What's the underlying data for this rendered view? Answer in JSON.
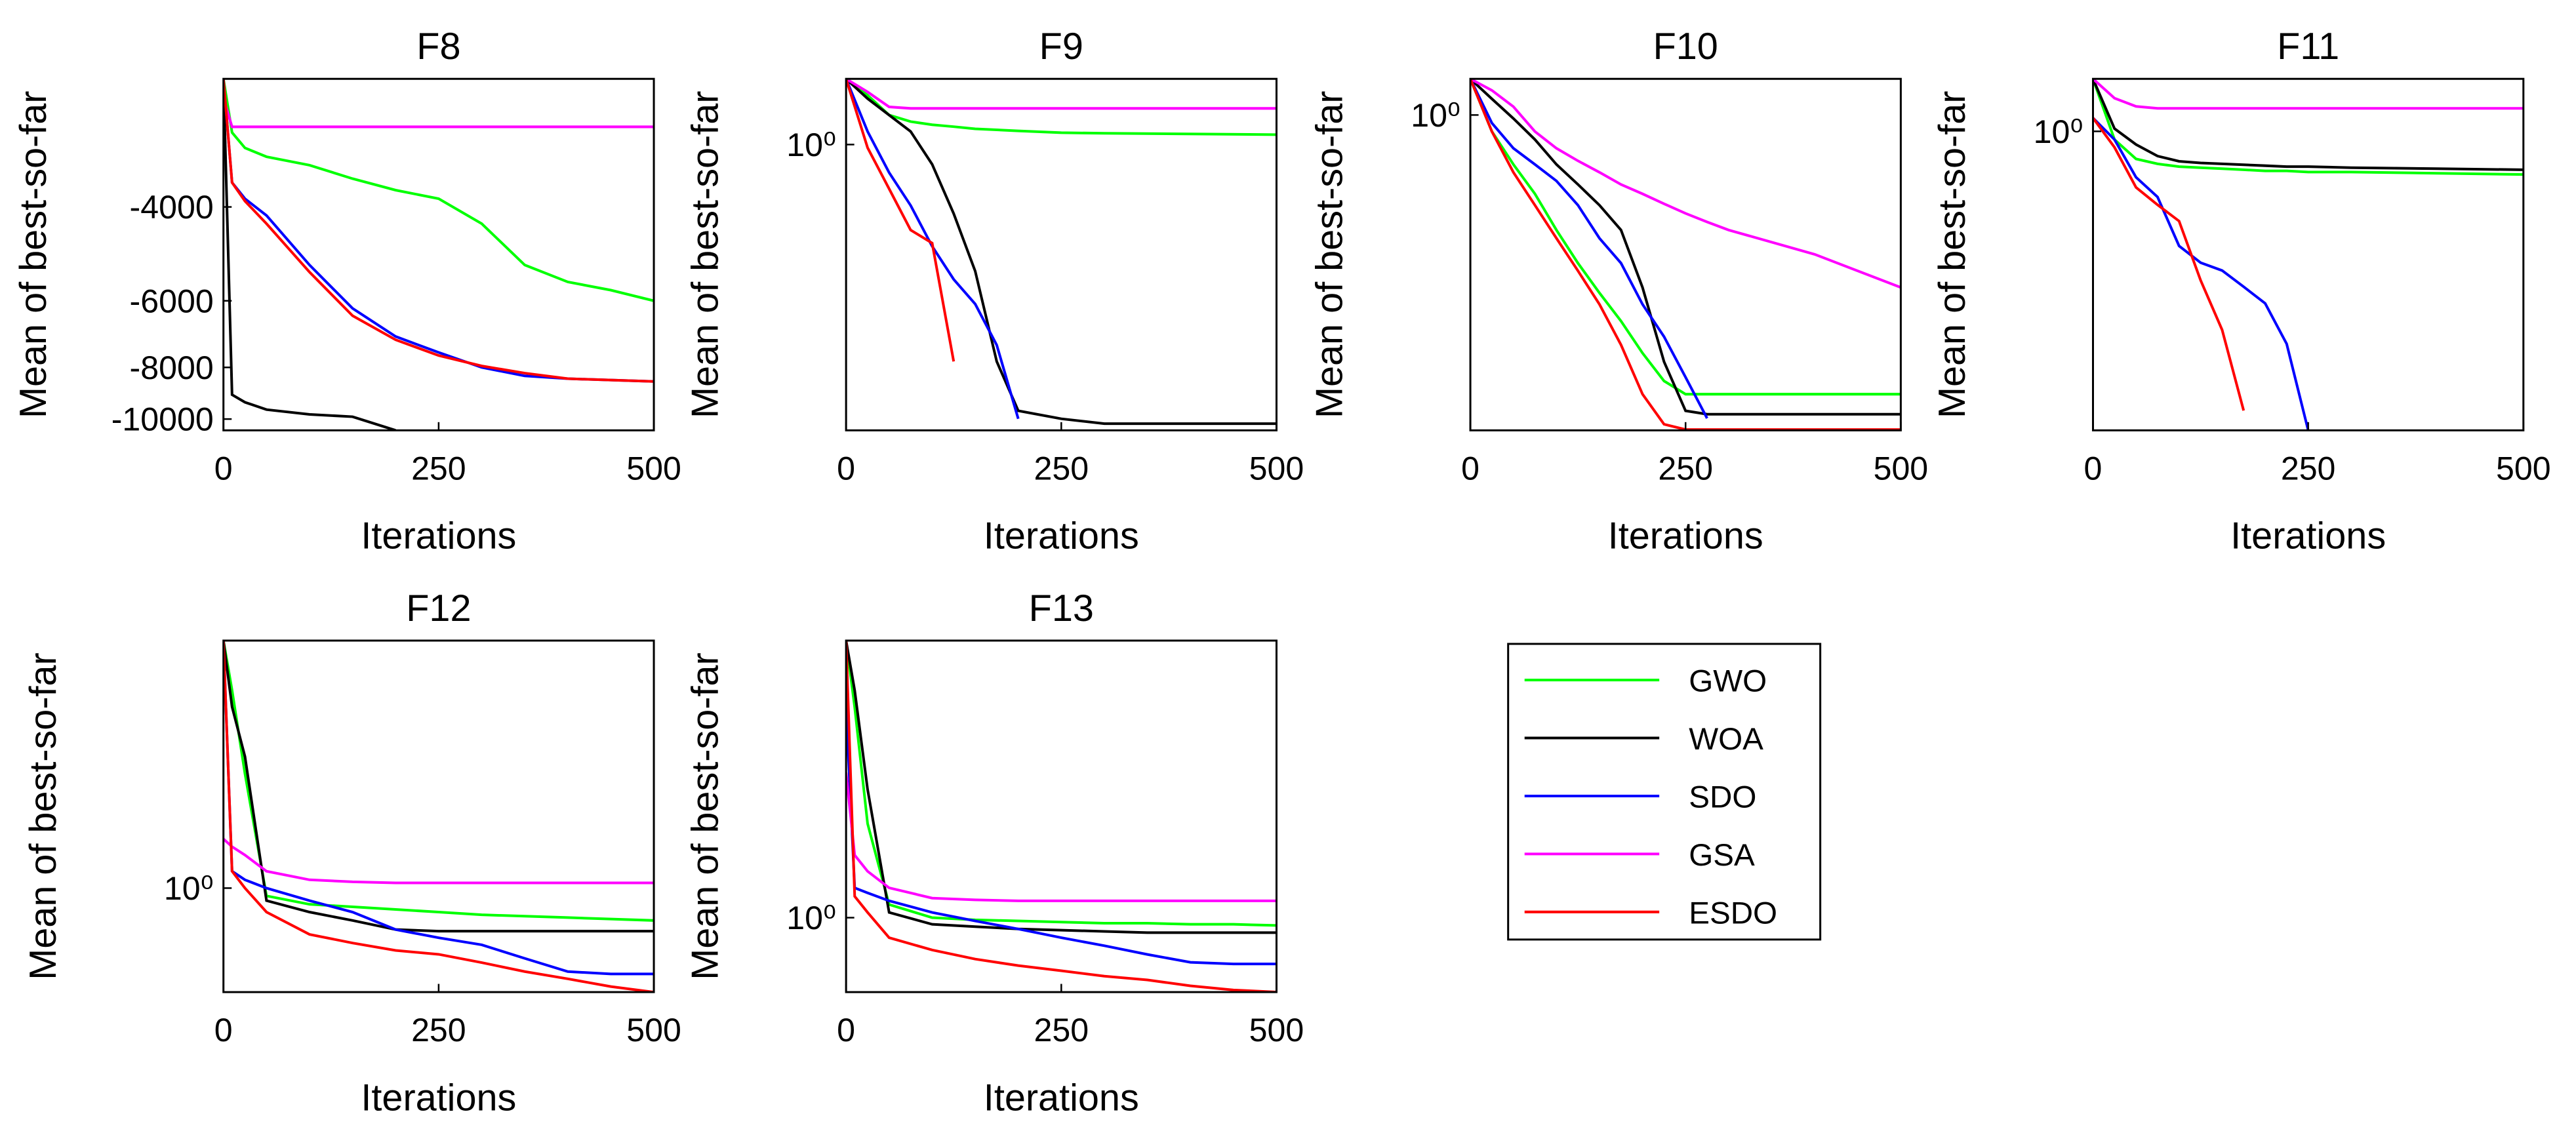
{
  "legend": [
    {
      "name": "GWO",
      "color": "#00ff00"
    },
    {
      "name": "WOA",
      "color": "#000000"
    },
    {
      "name": "SDO",
      "color": "#0000ff"
    },
    {
      "name": "GSA",
      "color": "#ff00ff"
    },
    {
      "name": "ESDO",
      "color": "#ff0000"
    }
  ],
  "chart_data": [
    {
      "type": "line",
      "title": "F8",
      "xlabel": "Iterations",
      "ylabel": "Mean of best-so-far",
      "yscale": "log",
      "xlim": [
        0,
        500
      ],
      "xticks": [
        0,
        250,
        500
      ],
      "ylim": [
        -10500,
        -2300
      ],
      "yticks": [
        -10000,
        -8000,
        -6000,
        -4000
      ],
      "x": [
        0,
        10,
        25,
        50,
        100,
        150,
        200,
        250,
        300,
        350,
        400,
        450,
        500
      ],
      "series": [
        {
          "values": [
            -2300,
            -2900,
            -3100,
            -3220,
            -3340,
            -3540,
            -3720,
            -3860,
            -4300,
            -5140,
            -5530,
            -5730,
            -6000
          ]
        },
        {
          "values": [
            -2300,
            -9000,
            -9300,
            -9600,
            -9800,
            -9900,
            -10500,
            null,
            null,
            null,
            null,
            null,
            null
          ]
        },
        {
          "values": [
            -2300,
            -3600,
            -3860,
            -4150,
            -5140,
            -6200,
            -7000,
            -7500,
            -8000,
            -8300,
            -8400,
            -8450,
            -8500
          ]
        },
        {
          "values": [
            -2500,
            -2830,
            -2830,
            -2830,
            -2830,
            -2830,
            -2830,
            -2830,
            -2830,
            -2830,
            -2830,
            -2830,
            -2830
          ]
        },
        {
          "values": [
            -2300,
            -3600,
            -3900,
            -4300,
            -5300,
            -6400,
            -7100,
            -7600,
            -7950,
            -8200,
            -8400,
            -8450,
            -8500
          ]
        }
      ]
    },
    {
      "type": "line",
      "title": "F9",
      "xlabel": "Iterations",
      "ylabel": "Mean of best-so-far",
      "yscale": "log",
      "xlim": [
        0,
        500
      ],
      "xticks": [
        0,
        250,
        500
      ],
      "ylim": [
        2e-09,
        100
      ],
      "yticks": [
        {
          "value": 1,
          "label": "10⁰"
        }
      ],
      "x": [
        0,
        25,
        50,
        75,
        100,
        125,
        150,
        175,
        200,
        250,
        300,
        500
      ],
      "series": [
        {
          "values": [
            100,
            31.6,
            7.9,
            5,
            4,
            3.5,
            3,
            2.8,
            2.6,
            2.3,
            2.2,
            2
          ]
        },
        {
          "values": [
            100,
            25,
            7.9,
            2.5,
            0.25,
            0.0079,
            0.00014,
            2.5e-07,
            7.9e-09,
            4.5e-09,
            3.2e-09,
            3.2e-09
          ]
        },
        {
          "values": [
            100,
            2.5,
            0.14,
            0.014,
            0.0008,
            7.9e-05,
            1.4e-05,
            7.9e-07,
            4.5e-09,
            null,
            null,
            null
          ]
        },
        {
          "values": [
            100,
            40,
            14,
            12.6,
            12.6,
            12.6,
            12.6,
            12.6,
            12.6,
            12.6,
            12.6,
            12.6
          ]
        },
        {
          "values": [
            100,
            0.8,
            0.045,
            0.0025,
            0.001,
            2.5e-07,
            null,
            null,
            null,
            null,
            null,
            null
          ]
        }
      ]
    },
    {
      "type": "line",
      "title": "F10",
      "xlabel": "Iterations",
      "ylabel": "Mean of best-so-far",
      "yscale": "log",
      "xlim": [
        0,
        500
      ],
      "xticks": [
        0,
        250,
        500
      ],
      "ylim": [
        1.9e-09,
        10
      ],
      "yticks": [
        {
          "value": 1,
          "label": "10⁰"
        }
      ],
      "x": [
        0,
        25,
        50,
        75,
        100,
        125,
        150,
        175,
        200,
        225,
        250,
        275,
        300,
        400,
        500
      ],
      "series": [
        {
          "values": [
            10,
            0.35,
            0.043,
            0.0066,
            0.00066,
            8e-05,
            1.2e-05,
            2e-06,
            2.6e-07,
            4.4e-08,
            1.9e-08,
            1.9e-08,
            1.9e-08,
            1.9e-08,
            1.9e-08
          ]
        },
        {
          "values": [
            10,
            2.8,
            0.8,
            0.21,
            0.043,
            0.012,
            0.0032,
            0.00066,
            1.7e-05,
            1.5e-07,
            6.6e-09,
            5.3e-09,
            5.3e-09,
            5.3e-09,
            5.3e-09
          ]
        },
        {
          "values": [
            10,
            0.6,
            0.12,
            0.043,
            0.015,
            0.0032,
            0.00039,
            8e-05,
            5.8e-06,
            7.4e-07,
            5.6e-08,
            4.1e-09,
            null,
            null,
            null
          ]
        },
        {
          "values": [
            10,
            4.8,
            1.7,
            0.35,
            0.12,
            0.054,
            0.026,
            0.012,
            0.0066,
            0.0035,
            0.0019,
            0.0011,
            0.00066,
            0.00014,
            1.7e-05
          ]
        },
        {
          "values": [
            10,
            0.35,
            0.026,
            0.0032,
            0.00039,
            4.9e-05,
            5.8e-06,
            4.4e-07,
            1.9e-08,
            2.8e-09,
            2e-09,
            2e-09,
            2e-09,
            2e-09,
            2e-09
          ]
        }
      ]
    },
    {
      "type": "line",
      "title": "F11",
      "xlabel": "Iterations",
      "ylabel": "Mean of best-so-far",
      "yscale": "log",
      "xlim": [
        0,
        500
      ],
      "xticks": [
        0,
        250,
        500
      ],
      "ylim": [
        2.8e-05,
        6.3
      ],
      "yticks": [
        {
          "value": 1,
          "label": "10⁰"
        }
      ],
      "x": [
        0,
        25,
        50,
        75,
        100,
        125,
        150,
        175,
        200,
        225,
        250,
        300,
        400,
        500
      ],
      "series": [
        {
          "values": [
            6.3,
            0.75,
            0.38,
            0.32,
            0.29,
            0.28,
            0.27,
            0.26,
            0.25,
            0.25,
            0.24,
            0.24,
            0.23,
            0.22
          ]
        },
        {
          "values": [
            6.3,
            1.1,
            0.63,
            0.42,
            0.35,
            0.33,
            0.32,
            0.31,
            0.3,
            0.29,
            0.29,
            0.28,
            0.27,
            0.26
          ]
        },
        {
          "values": [
            1.6,
            0.75,
            0.2,
            0.1,
            0.018,
            0.01,
            0.0076,
            0.0043,
            0.0024,
            0.00058,
            2.8e-05,
            null,
            null,
            null
          ]
        },
        {
          "values": [
            6.3,
            3.2,
            2.4,
            2.24,
            2.24,
            2.24,
            2.24,
            2.24,
            2.24,
            2.24,
            2.24,
            2.24,
            2.24,
            2.24
          ]
        },
        {
          "values": [
            1.6,
            0.57,
            0.14,
            0.076,
            0.043,
            0.0054,
            0.00095,
            5.6e-05,
            null,
            null,
            null,
            null,
            null,
            null
          ]
        }
      ]
    },
    {
      "type": "line",
      "title": "F12",
      "xlabel": "Iterations",
      "ylabel": "Mean of best-so-far",
      "yscale": "log",
      "xlim": [
        0,
        500
      ],
      "xticks": [
        0,
        250,
        500
      ],
      "ylim": [
        0.38,
        10
      ],
      "yticks": [
        {
          "value": 1,
          "label": "10⁰"
        }
      ],
      "x": [
        0,
        10,
        25,
        50,
        100,
        150,
        200,
        250,
        300,
        350,
        400,
        450,
        500
      ],
      "series": [
        {
          "values": [
            10,
            6.3,
            2.9,
            0.93,
            0.86,
            0.84,
            0.82,
            0.8,
            0.78,
            0.77,
            0.76,
            0.75,
            0.74
          ]
        },
        {
          "values": [
            10,
            5.4,
            3.4,
            0.89,
            0.8,
            0.74,
            0.68,
            0.67,
            0.67,
            0.67,
            0.67,
            0.67,
            0.67
          ]
        },
        {
          "values": [
            10,
            1.17,
            1.08,
            1.0,
            0.89,
            0.8,
            0.68,
            0.63,
            0.59,
            0.52,
            0.46,
            0.45,
            0.45
          ]
        },
        {
          "values": [
            1.58,
            1.47,
            1.36,
            1.17,
            1.08,
            1.06,
            1.05,
            1.05,
            1.05,
            1.05,
            1.05,
            1.05,
            1.05
          ]
        },
        {
          "values": [
            10,
            1.17,
            1.0,
            0.8,
            0.65,
            0.6,
            0.56,
            0.54,
            0.5,
            0.46,
            0.43,
            0.4,
            0.38
          ]
        }
      ]
    },
    {
      "type": "line",
      "title": "F13",
      "xlabel": "Iterations",
      "ylabel": "Mean of best-so-far",
      "yscale": "log",
      "xlim": [
        0,
        500
      ],
      "xticks": [
        0,
        250,
        500
      ],
      "ylim": [
        0.5,
        13.2
      ],
      "yticks": [
        {
          "value": 1,
          "label": "10⁰"
        }
      ],
      "x": [
        0,
        10,
        25,
        50,
        100,
        150,
        200,
        250,
        300,
        350,
        400,
        450,
        500
      ],
      "series": [
        {
          "values": [
            13.2,
            7.1,
            2.4,
            1.13,
            1.0,
            0.98,
            0.97,
            0.96,
            0.95,
            0.95,
            0.94,
            0.94,
            0.93
          ]
        },
        {
          "values": [
            13.2,
            8.3,
            3.3,
            1.05,
            0.94,
            0.92,
            0.9,
            0.89,
            0.88,
            0.87,
            0.87,
            0.87,
            0.87
          ]
        },
        {
          "values": [
            7.1,
            1.32,
            1.26,
            1.17,
            1.05,
            0.97,
            0.9,
            0.83,
            0.77,
            0.71,
            0.66,
            0.65,
            0.65
          ]
        },
        {
          "values": [
            3.86,
            1.79,
            1.54,
            1.32,
            1.2,
            1.18,
            1.17,
            1.17,
            1.17,
            1.17,
            1.17,
            1.17,
            1.17
          ]
        },
        {
          "values": [
            13.2,
            1.22,
            1.05,
            0.83,
            0.74,
            0.68,
            0.64,
            0.61,
            0.58,
            0.56,
            0.53,
            0.51,
            0.5
          ]
        }
      ]
    }
  ]
}
